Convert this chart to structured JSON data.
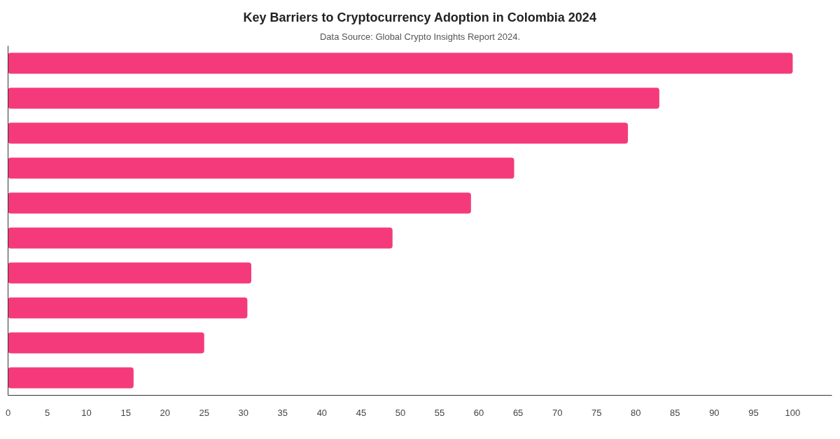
{
  "chart_data": {
    "type": "bar",
    "orientation": "horizontal",
    "title": "Key Barriers to Cryptocurrency Adoption in Colombia 2024",
    "subtitle": "Data Source: Global Crypto Insights Report 2024.",
    "categories": [
      null,
      null,
      null,
      null,
      null,
      null,
      null,
      null,
      null,
      null
    ],
    "values": [
      100,
      83,
      79,
      64.5,
      59,
      49,
      31,
      30.5,
      25,
      16
    ],
    "color": "#f53a7b",
    "xlim": [
      0,
      105
    ],
    "xticks": [
      0,
      5,
      10,
      15,
      20,
      25,
      30,
      35,
      40,
      45,
      50,
      55,
      60,
      65,
      70,
      75,
      80,
      85,
      90,
      95,
      100
    ],
    "tick_labels": "x"
  }
}
